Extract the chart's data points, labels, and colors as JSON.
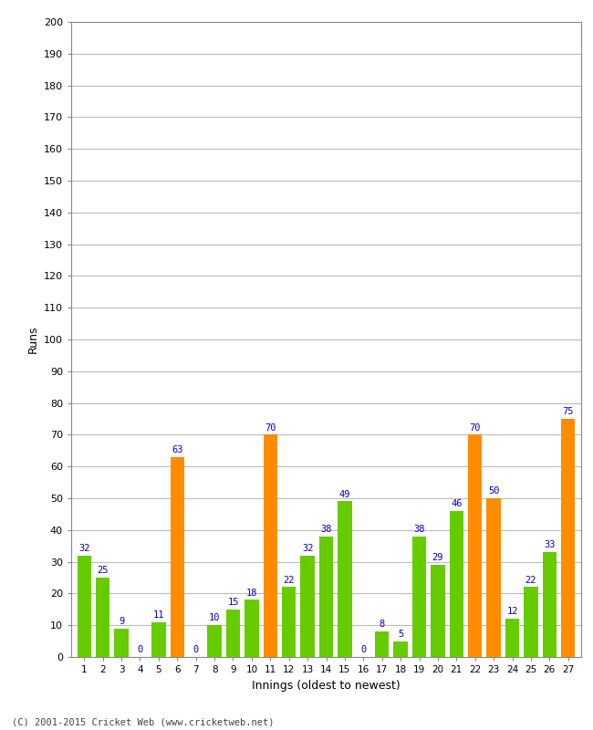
{
  "innings": [
    1,
    2,
    3,
    4,
    5,
    6,
    7,
    8,
    9,
    10,
    11,
    12,
    13,
    14,
    15,
    16,
    17,
    18,
    19,
    20,
    21,
    22,
    23,
    24,
    25,
    26,
    27
  ],
  "values": [
    32,
    25,
    9,
    0,
    11,
    63,
    0,
    10,
    15,
    18,
    70,
    22,
    32,
    38,
    49,
    0,
    8,
    5,
    38,
    29,
    46,
    70,
    50,
    12,
    22,
    33,
    75
  ],
  "colors": [
    "#66cc00",
    "#66cc00",
    "#66cc00",
    "#66cc00",
    "#66cc00",
    "#ff8c00",
    "#66cc00",
    "#66cc00",
    "#66cc00",
    "#66cc00",
    "#ff8c00",
    "#66cc00",
    "#66cc00",
    "#66cc00",
    "#66cc00",
    "#66cc00",
    "#66cc00",
    "#66cc00",
    "#66cc00",
    "#66cc00",
    "#66cc00",
    "#ff8c00",
    "#ff8c00",
    "#66cc00",
    "#66cc00",
    "#66cc00",
    "#ff8c00"
  ],
  "xlabel": "Innings (oldest to newest)",
  "ylabel": "Runs",
  "ylim": [
    0,
    200
  ],
  "yticks": [
    0,
    10,
    20,
    30,
    40,
    50,
    60,
    70,
    80,
    90,
    100,
    110,
    120,
    130,
    140,
    150,
    160,
    170,
    180,
    190,
    200
  ],
  "label_color": "#0000cc",
  "background_color": "#ffffff",
  "grid_color": "#bbbbbb",
  "footer": "(C) 2001-2015 Cricket Web (www.cricketweb.net)",
  "bar_width": 0.75
}
